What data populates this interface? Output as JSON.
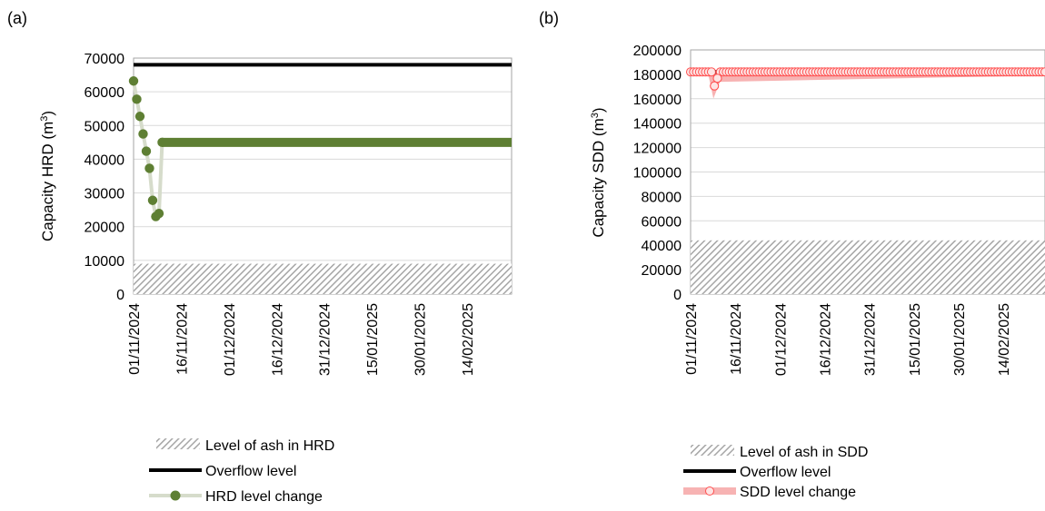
{
  "chart_data": [
    {
      "panel_label": "(a)",
      "type": "line",
      "ylabel": "Capacity HRD (m",
      "ylabel_sup": "3",
      "ylabel_close": ")",
      "ylim": [
        0,
        70000
      ],
      "yticks": [
        0,
        10000,
        20000,
        30000,
        40000,
        50000,
        60000,
        70000
      ],
      "ytick_labels": [
        "0",
        "10000",
        "20000",
        "30000",
        "40000",
        "50000",
        "60000",
        "70000"
      ],
      "xlim": [
        "2024-11-01",
        "2025-02-28"
      ],
      "xtick_labels": [
        "01/11/2024",
        "16/11/2024",
        "01/12/2024",
        "16/12/2024",
        "31/12/2024",
        "15/01/2025",
        "30/01/2025",
        "14/02/2025"
      ],
      "xtick_dates": [
        "2024-11-01",
        "2024-11-16",
        "2024-12-01",
        "2024-12-16",
        "2024-12-31",
        "2025-01-15",
        "2025-01-30",
        "2025-02-14"
      ],
      "grid": true,
      "legend_position": "bottom",
      "ash_level": 9000,
      "overflow_level": 68000,
      "level_change": {
        "x": [
          "2024-11-01",
          "2024-11-02",
          "2024-11-03",
          "2024-11-04",
          "2024-11-05",
          "2024-11-06",
          "2024-11-07",
          "2024-11-08",
          "2024-11-09",
          "2024-11-10",
          "2025-02-28"
        ],
        "y": [
          63200,
          57800,
          52700,
          47500,
          42400,
          37300,
          27800,
          23000,
          23900,
          45000,
          45000
        ],
        "marker_until_index": 9
      },
      "legend": [
        {
          "label": "Level of ash in HRD",
          "kind": "hatch"
        },
        {
          "label": "Overflow level",
          "kind": "line"
        },
        {
          "label": "HRD level change",
          "kind": "line-marker"
        }
      ],
      "colors": {
        "series": "#5e7f33",
        "series_line": "#d6dccb",
        "overflow": "#000000",
        "ash": "#a6a6a6",
        "grid": "#d9d9d9",
        "axis": "#a6a6a6"
      }
    },
    {
      "panel_label": "(b)",
      "type": "line",
      "ylabel": "Capacity SDD (m",
      "ylabel_sup": "3",
      "ylabel_close": ")",
      "ylim": [
        0,
        200000
      ],
      "yticks": [
        0,
        20000,
        40000,
        60000,
        80000,
        100000,
        120000,
        140000,
        160000,
        180000,
        200000
      ],
      "ytick_labels": [
        "0",
        "20000",
        "40000",
        "60000",
        "80000",
        "100000",
        "120000",
        "140000",
        "160000",
        "180000",
        "200000"
      ],
      "xlim": [
        "2024-11-01",
        "2025-02-28"
      ],
      "xtick_labels": [
        "01/11/2024",
        "16/11/2024",
        "01/12/2024",
        "16/12/2024",
        "31/12/2024",
        "15/01/2025",
        "30/01/2025",
        "14/02/2025"
      ],
      "xtick_dates": [
        "2024-11-01",
        "2024-11-16",
        "2024-12-01",
        "2024-12-16",
        "2024-12-31",
        "2025-01-15",
        "2025-01-30",
        "2025-02-14"
      ],
      "grid": true,
      "legend_position": "bottom",
      "ash_level": 44000,
      "overflow_level": 182000,
      "level_change": {
        "x": [
          "2024-11-01",
          "2024-11-02",
          "2024-11-03",
          "2024-11-04",
          "2024-11-05",
          "2024-11-06",
          "2024-11-07",
          "2024-11-08",
          "2024-11-09",
          "2024-11-10",
          "2025-02-28"
        ],
        "y": [
          182000,
          182000,
          182000,
          182000,
          182000,
          182000,
          182000,
          182000,
          170500,
          176800,
          182000
        ],
        "marker_until_index": 10
      },
      "legend": [
        {
          "label": "Level of ash in SDD",
          "kind": "hatch"
        },
        {
          "label": "Overflow level",
          "kind": "line"
        },
        {
          "label": "SDD level change",
          "kind": "line-marker"
        }
      ],
      "colors": {
        "series": "#ff5050",
        "series_line": "#f7b3b3",
        "overflow": "#000000",
        "ash": "#a6a6a6",
        "grid": "#d9d9d9",
        "axis": "#a6a6a6"
      }
    }
  ]
}
